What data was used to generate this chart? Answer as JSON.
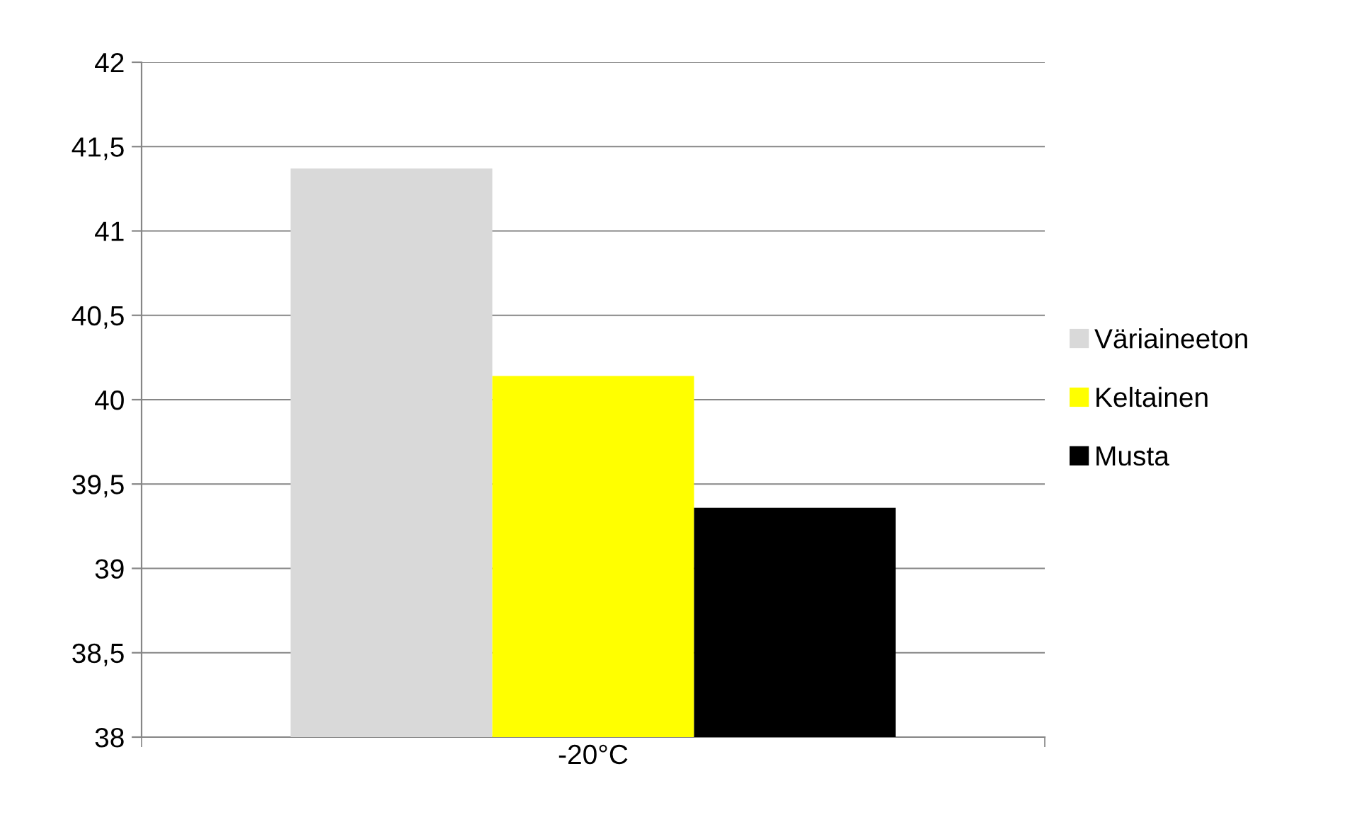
{
  "chart_data": {
    "type": "bar",
    "categories": [
      "-20°C"
    ],
    "series": [
      {
        "name": "Väriaineeton",
        "color": "#d9d9d9",
        "values": [
          41.37
        ]
      },
      {
        "name": "Keltainen",
        "color": "#ffff00",
        "values": [
          40.14
        ]
      },
      {
        "name": "Musta",
        "color": "#000000",
        "values": [
          39.36
        ]
      }
    ],
    "ylim": [
      38,
      42
    ],
    "yticks": [
      38,
      {
        "value": 38.5,
        "label": "38,5"
      },
      39,
      {
        "value": 39.5,
        "label": "39,5"
      },
      40,
      {
        "value": 40.5,
        "label": "40,5"
      },
      41,
      {
        "value": 41.5,
        "label": "41,5"
      },
      42
    ],
    "grid": "y",
    "legend": "right"
  }
}
